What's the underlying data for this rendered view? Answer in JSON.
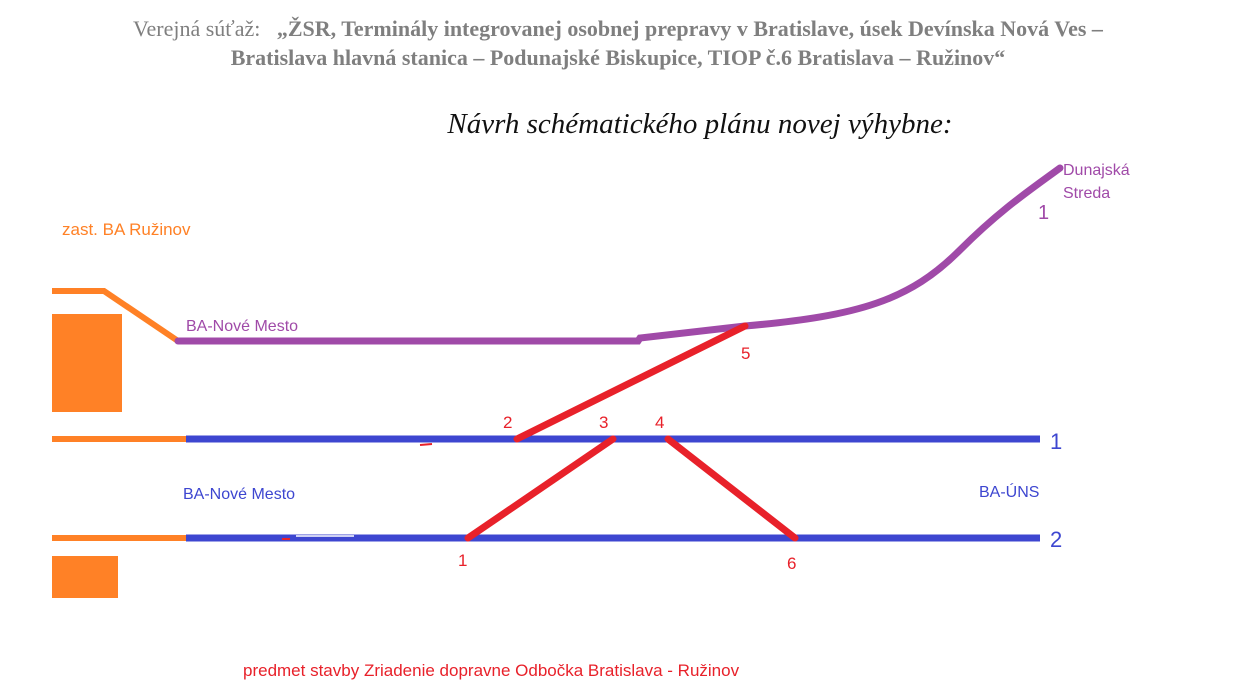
{
  "header": {
    "prefix": "Verejná súťaž:",
    "line1": "„ŽSR, Terminály integrovanej osobnej prepravy v Bratislave, úsek Devínska Nová Ves –",
    "line2": "Bratislava hlavná stanica – Podunajské Biskupice, TIOP č.6 Bratislava – Ružinov“"
  },
  "subtitle": "Návrh schématického plánu novej výhybne:",
  "diagram": {
    "colors": {
      "orange": "#ff8126",
      "purple": "#a04aa8",
      "blue": "#3d46d0",
      "red": "#e8212a"
    },
    "labels": {
      "zastavka": "zast. BA Ružinov",
      "nove_mesto_purple": "BA-Nové Mesto",
      "dunajska_1": "Dunajská",
      "dunajska_2": "Streda",
      "purple_track_no": "1",
      "nove_mesto_blue": "BA-Nové Mesto",
      "ba_uns": "BA-ÚNS",
      "track_1": "1",
      "track_2": "2",
      "footer": "predmet stavby Zriadenie dopravne Odbočka Bratislava - Ružinov"
    },
    "switches": [
      "1",
      "2",
      "3",
      "4",
      "5",
      "6"
    ]
  }
}
